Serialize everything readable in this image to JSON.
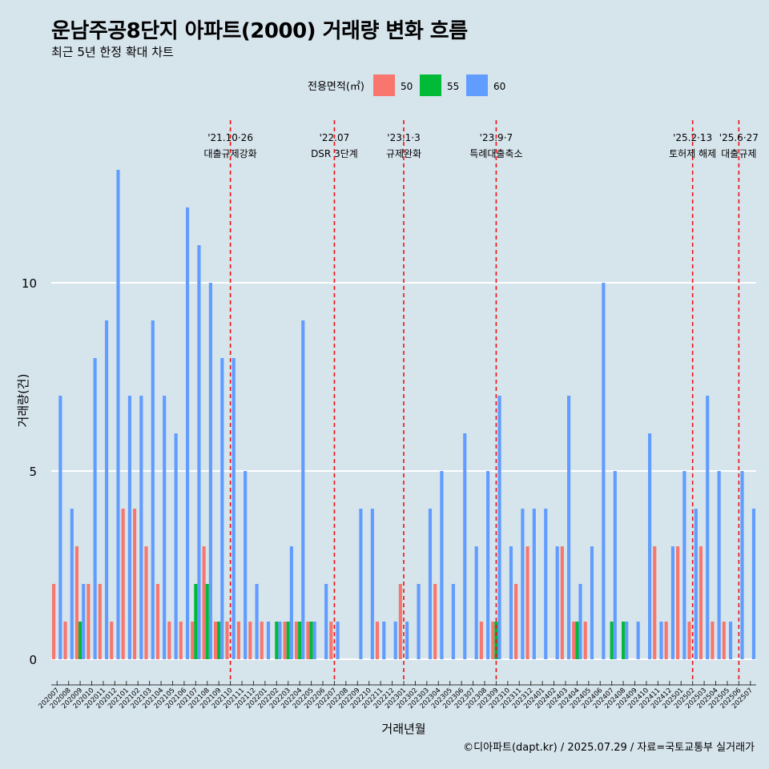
{
  "title": "운남주공8단지 아파트(2000) 거래량 변화 흐름",
  "subtitle": "최근 5년 한정 확대 차트",
  "caption": "©디아파트(dapt.kr) / 2025.07.29 / 자료=국토교통부 실거래가",
  "chart_data": {
    "type": "bar",
    "title": "운남주공8단지 아파트(2000) 거래량 변화 흐름",
    "subtitle": "최근 5년 한정 확대 차트",
    "xlabel": "거래년월",
    "ylabel": "거래량(건)",
    "ylim": [
      0,
      13.8
    ],
    "yticks": [
      0,
      5,
      10
    ],
    "grid": true,
    "legend": {
      "title": "전용면적(㎡)",
      "placement": "top"
    },
    "colors": {
      "50": "#f8766d",
      "55": "#00ba38",
      "60": "#619cff"
    },
    "categories": [
      "202007",
      "202008",
      "202009",
      "202010",
      "202011",
      "202012",
      "202101",
      "202102",
      "202103",
      "202104",
      "202105",
      "202106",
      "202107",
      "202108",
      "202109",
      "202110",
      "202111",
      "202112",
      "202201",
      "202202",
      "202203",
      "202204",
      "202205",
      "202206",
      "202207",
      "202208",
      "202209",
      "202210",
      "202211",
      "202212",
      "202301",
      "202302",
      "202303",
      "202304",
      "202305",
      "202306",
      "202307",
      "202308",
      "202309",
      "202310",
      "202311",
      "202312",
      "202401",
      "202402",
      "202403",
      "202404",
      "202405",
      "202406",
      "202407",
      "202408",
      "202409",
      "202410",
      "202411",
      "202412",
      "202501",
      "202502",
      "202503",
      "202504",
      "202505",
      "202506",
      "202507"
    ],
    "series": [
      {
        "name": "50",
        "values": [
          2,
          1,
          3,
          2,
          2,
          1,
          4,
          4,
          3,
          2,
          1,
          1,
          1,
          3,
          1,
          1,
          1,
          1,
          1,
          0,
          1,
          1,
          1,
          0,
          1,
          0,
          0,
          0,
          1,
          0,
          2,
          0,
          0,
          2,
          0,
          0,
          0,
          1,
          1,
          0,
          2,
          3,
          0,
          0,
          3,
          1,
          1,
          0,
          0,
          0,
          0,
          0,
          3,
          1,
          3,
          1,
          3,
          1,
          1,
          0,
          0
        ]
      },
      {
        "name": "55",
        "values": [
          0,
          0,
          1,
          0,
          0,
          0,
          0,
          0,
          0,
          0,
          0,
          0,
          2,
          2,
          1,
          0,
          0,
          0,
          0,
          1,
          1,
          1,
          1,
          0,
          0,
          0,
          0,
          0,
          0,
          0,
          0,
          0,
          0,
          0,
          0,
          0,
          0,
          0,
          1,
          0,
          0,
          0,
          0,
          0,
          0,
          1,
          0,
          0,
          1,
          1,
          0,
          0,
          0,
          0,
          0,
          0,
          0,
          0,
          0,
          0,
          0
        ]
      },
      {
        "name": "60",
        "values": [
          7,
          4,
          2,
          8,
          9,
          13,
          7,
          7,
          9,
          7,
          6,
          12,
          11,
          10,
          8,
          8,
          5,
          2,
          1,
          1,
          3,
          9,
          1,
          2,
          1,
          0,
          4,
          4,
          1,
          1,
          1,
          2,
          4,
          5,
          2,
          6,
          3,
          5,
          7,
          3,
          4,
          4,
          4,
          3,
          7,
          2,
          3,
          10,
          5,
          1,
          1,
          6,
          1,
          3,
          5,
          4,
          7,
          5,
          1,
          5,
          4
        ]
      }
    ],
    "annotations": [
      {
        "x": "202110",
        "label1": "'21.10·26",
        "label2": "대출규제강화"
      },
      {
        "x": "202207",
        "label1": "'22.07",
        "label2": "DSR 3단계"
      },
      {
        "x": "202301",
        "label1": "'23.1·3",
        "label2": "규제완화"
      },
      {
        "x": "202309",
        "label1": "'23.9·7",
        "label2": "특례대출축소"
      },
      {
        "x": "202502",
        "label1": "'25.2·13",
        "label2": "토허제 해제"
      },
      {
        "x": "202506",
        "label1": "'25.6·27",
        "label2": "대출규제"
      }
    ]
  }
}
